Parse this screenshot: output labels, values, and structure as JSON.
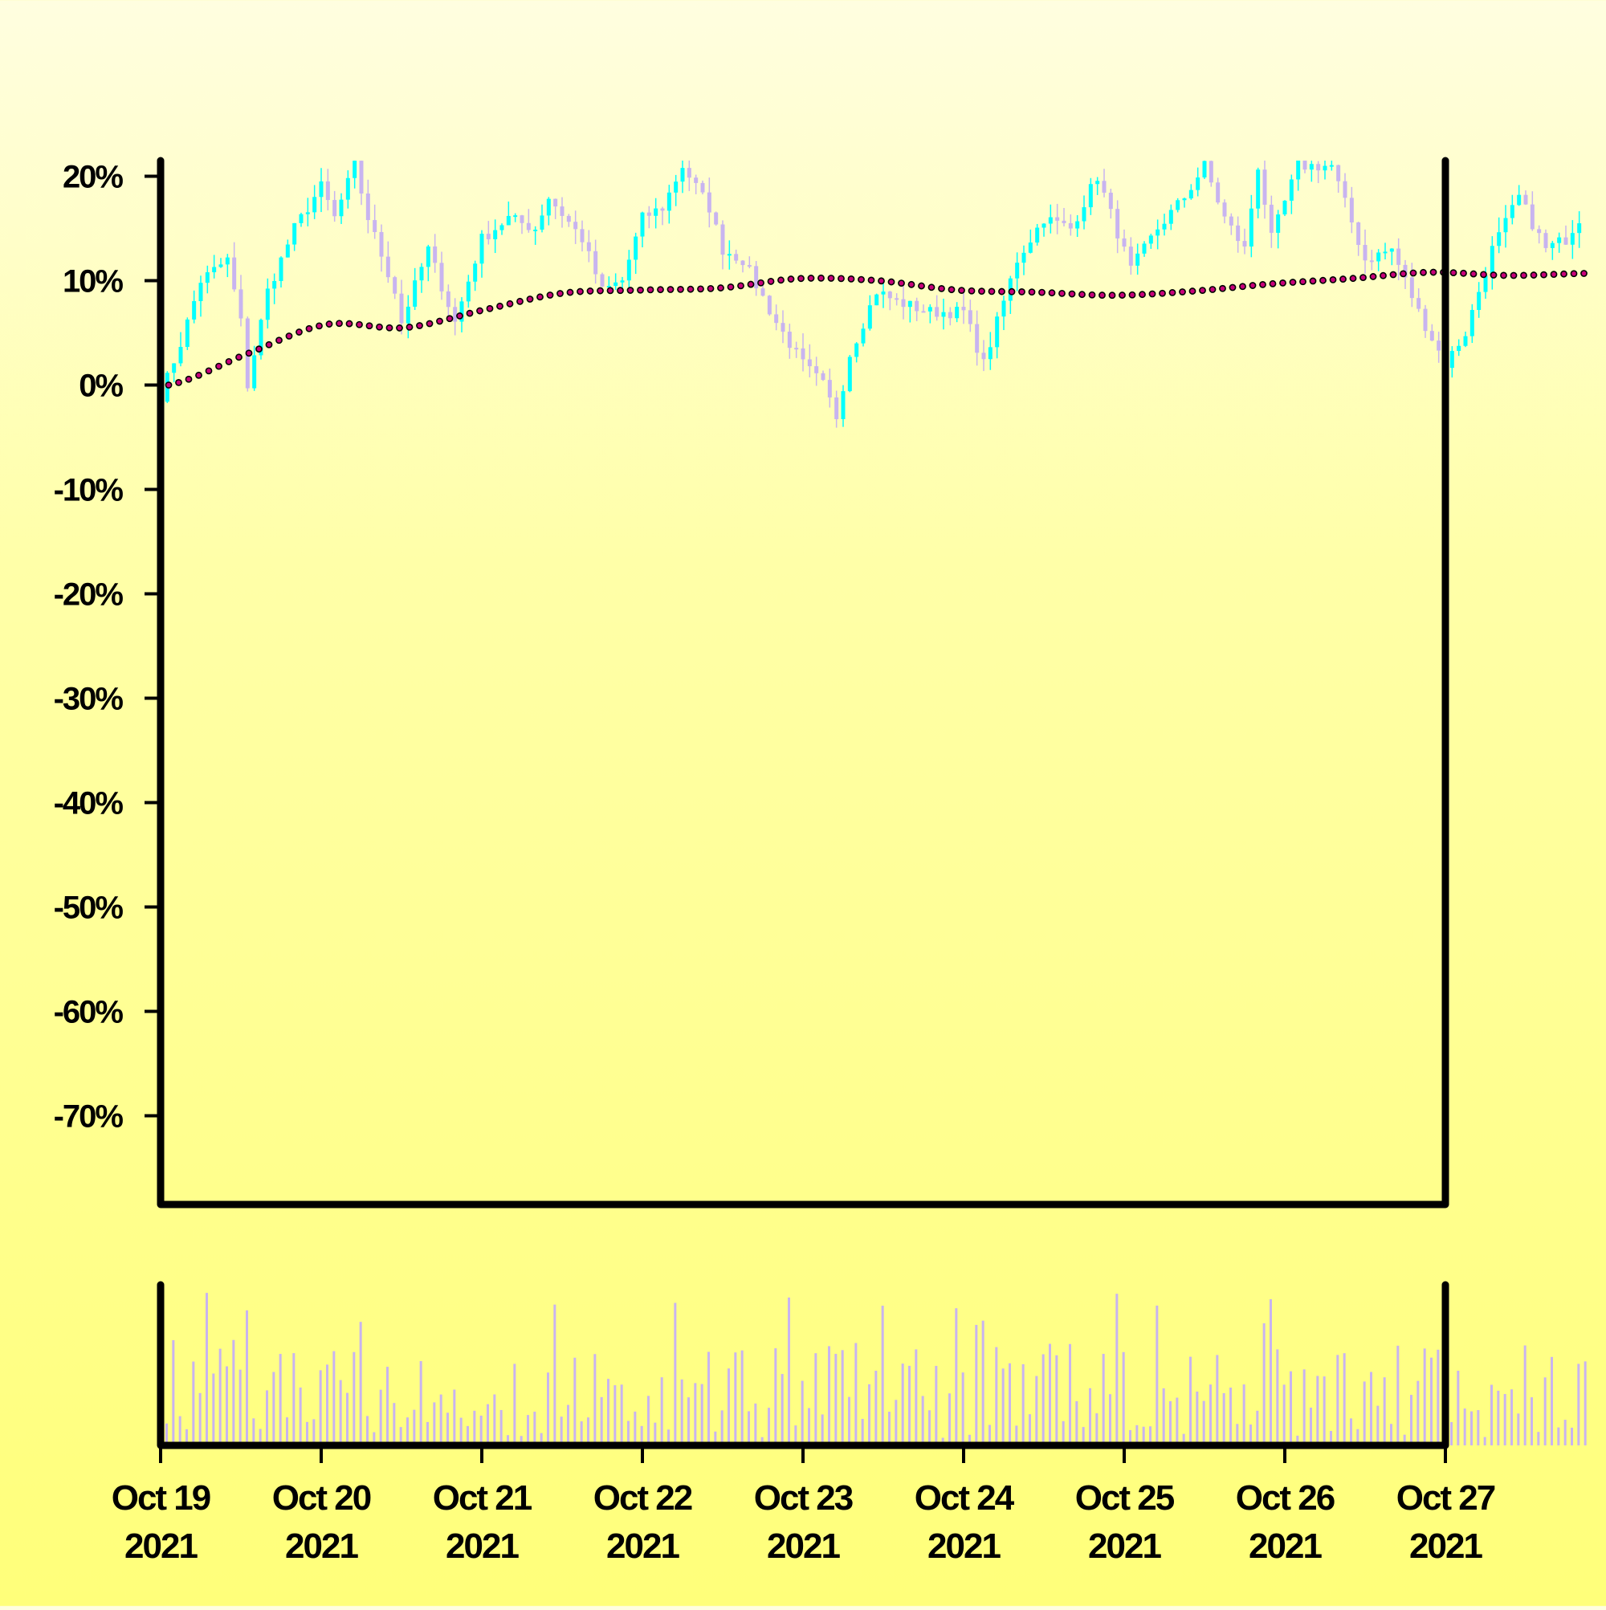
{
  "chart_data": {
    "type": "candlestick",
    "title": "",
    "xlabel": "",
    "ylabel": "",
    "x_ticks": [
      {
        "day": 0,
        "label": [
          "Oct 19",
          "2021"
        ]
      },
      {
        "day": 1,
        "label": [
          "Oct 20",
          "2021"
        ]
      },
      {
        "day": 2,
        "label": [
          "Oct 21",
          "2021"
        ]
      },
      {
        "day": 3,
        "label": [
          "Oct 22",
          "2021"
        ]
      },
      {
        "day": 4,
        "label": [
          "Oct 23",
          "2021"
        ]
      },
      {
        "day": 5,
        "label": [
          "Oct 24",
          "2021"
        ]
      },
      {
        "day": 6,
        "label": [
          "Oct 25",
          "2021"
        ]
      },
      {
        "day": 7,
        "label": [
          "Oct 26",
          "2021"
        ]
      },
      {
        "day": 8,
        "label": [
          "Oct 27",
          "2021"
        ]
      }
    ],
    "xlim": [
      "Oct 19 2021",
      "Oct 27 2021"
    ],
    "y_ticks": [
      20,
      10,
      0,
      -10,
      -20,
      -30,
      -40,
      -50,
      -60,
      -70
    ],
    "y_tick_labels": [
      "20%",
      "10%",
      "0%",
      "-10%",
      "-20%",
      "-30%",
      "-40%",
      "-50%",
      "-60%",
      "-70%"
    ],
    "ylim": [
      -78.5,
      21.5
    ],
    "price_series": {
      "name": "",
      "interval_hours": 1,
      "up_color": "#00ffff",
      "down_color": "#c8b4f0",
      "anchors": [
        [
          0,
          -1
        ],
        [
          3,
          4
        ],
        [
          6,
          10
        ],
        [
          10,
          12
        ],
        [
          12,
          6
        ],
        [
          13,
          0
        ],
        [
          16,
          9
        ],
        [
          20,
          15
        ],
        [
          24,
          19
        ],
        [
          26,
          16
        ],
        [
          29,
          21
        ],
        [
          31,
          16
        ],
        [
          35,
          9
        ],
        [
          36,
          6
        ],
        [
          40,
          13
        ],
        [
          44,
          6
        ],
        [
          48,
          14
        ],
        [
          52,
          16
        ],
        [
          56,
          15
        ],
        [
          58,
          18
        ],
        [
          63,
          14
        ],
        [
          66,
          9
        ],
        [
          69,
          10
        ],
        [
          72,
          16
        ],
        [
          75,
          17
        ],
        [
          78,
          21
        ],
        [
          82,
          17
        ],
        [
          84,
          13
        ],
        [
          87,
          12
        ],
        [
          92,
          6
        ],
        [
          96,
          2
        ],
        [
          99,
          0
        ],
        [
          101,
          -3
        ],
        [
          103,
          3
        ],
        [
          107,
          9
        ],
        [
          110,
          8
        ],
        [
          115,
          7
        ],
        [
          120,
          7
        ],
        [
          123,
          2
        ],
        [
          128,
          12
        ],
        [
          132,
          16
        ],
        [
          136,
          15
        ],
        [
          140,
          20
        ],
        [
          145,
          11
        ],
        [
          149,
          15
        ],
        [
          153,
          18
        ],
        [
          156,
          21
        ],
        [
          159,
          16
        ],
        [
          162,
          13
        ],
        [
          164,
          21
        ],
        [
          166,
          14
        ],
        [
          170,
          21
        ],
        [
          175,
          21
        ],
        [
          180,
          12
        ],
        [
          184,
          13
        ],
        [
          188,
          7
        ],
        [
          192,
          2
        ],
        [
          195,
          5
        ],
        [
          199,
          13
        ],
        [
          203,
          18
        ],
        [
          207,
          13
        ],
        [
          210,
          14
        ],
        [
          212,
          16
        ]
      ]
    },
    "moving_average": {
      "name": "",
      "color": "#c8007a",
      "values": [
        0,
        3,
        5.8,
        5.5,
        7.2,
        8.8,
        9.1,
        9.3,
        10.2,
        10.0,
        9.1,
        8.9,
        8.6,
        9.0,
        9.7,
        10.2,
        10.8,
        10.5,
        10.7
      ]
    },
    "volume_panel": {
      "color": "#c8b4f0",
      "ylim": [
        0,
        100
      ]
    }
  }
}
